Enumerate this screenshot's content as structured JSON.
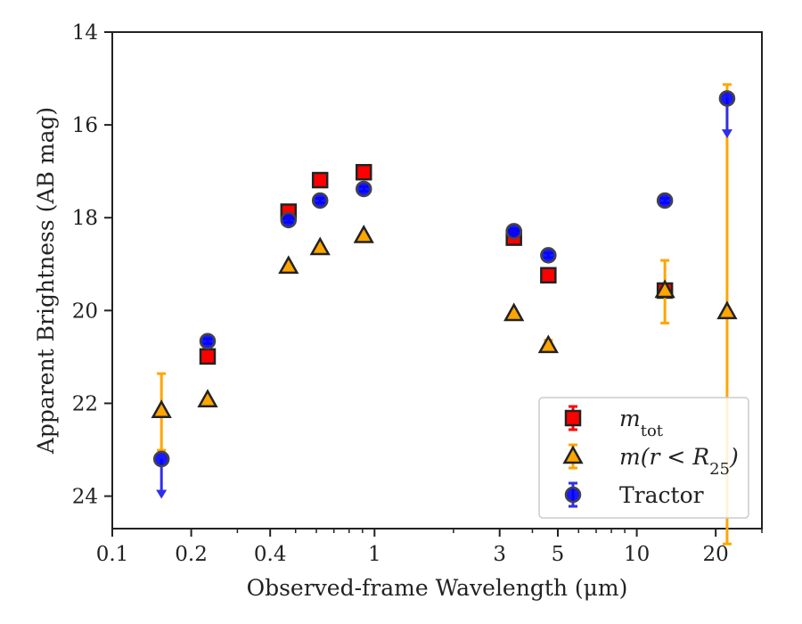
{
  "chart_data": {
    "type": "scatter",
    "title": "",
    "xlabel": "Observed-frame Wavelength (μm)",
    "ylabel": "Apparent Brightness (AB mag)",
    "xscale": "log",
    "xlim": [
      0.1,
      30
    ],
    "ylim": [
      24.7,
      14
    ],
    "y_inverted": true,
    "x_ticks": [
      {
        "value": 0.1,
        "label": "0.1"
      },
      {
        "value": 0.2,
        "label": "0.2"
      },
      {
        "value": 0.4,
        "label": "0.4"
      },
      {
        "value": 1,
        "label": "1"
      },
      {
        "value": 3,
        "label": "3"
      },
      {
        "value": 5,
        "label": "5"
      },
      {
        "value": 10,
        "label": "10"
      },
      {
        "value": 20,
        "label": "20"
      }
    ],
    "x_minor_ticks": [
      0.3,
      0.5,
      0.6,
      0.7,
      0.8,
      0.9,
      2,
      4,
      6,
      7,
      8,
      9,
      30
    ],
    "y_ticks": [
      {
        "value": 14,
        "label": "14"
      },
      {
        "value": 16,
        "label": "16"
      },
      {
        "value": 18,
        "label": "18"
      },
      {
        "value": 20,
        "label": "20"
      },
      {
        "value": 22,
        "label": "22"
      },
      {
        "value": 24,
        "label": "24"
      }
    ],
    "legend": {
      "placement": "lower-right",
      "entries": [
        {
          "series": 0,
          "main": "m",
          "sub": "tot",
          "rest": ""
        },
        {
          "series": 1,
          "main": "m(r < R",
          "sub": "25",
          "rest": ")"
        },
        {
          "series": 2,
          "main": "Tractor",
          "sub": "",
          "rest": ""
        }
      ]
    },
    "series": [
      {
        "marker": "square",
        "color": "#ff0000",
        "errcolor": "#ff0000",
        "points": [
          {
            "x": 0.231,
            "y": 20.99,
            "err": 0.08
          },
          {
            "x": 0.47,
            "y": 17.87,
            "err": 0.05
          },
          {
            "x": 0.62,
            "y": 17.19,
            "err": 0.05
          },
          {
            "x": 0.91,
            "y": 17.02,
            "err": 0.05
          },
          {
            "x": 3.4,
            "y": 18.43,
            "err": 0.05
          },
          {
            "x": 4.6,
            "y": 19.24,
            "err": 0.05
          },
          {
            "x": 12.8,
            "y": 19.57,
            "err": 0.08
          }
        ]
      },
      {
        "marker": "triangle",
        "color": "#ffa500",
        "errcolor": "#ffa500",
        "points": [
          {
            "x": 0.154,
            "y": 22.16,
            "errlo": 0.8,
            "errhi": 0.85
          },
          {
            "x": 0.231,
            "y": 21.93,
            "err": 0.05
          },
          {
            "x": 0.47,
            "y": 19.05,
            "err": 0.05
          },
          {
            "x": 0.62,
            "y": 18.65,
            "err": 0.05
          },
          {
            "x": 0.91,
            "y": 18.39,
            "err": 0.05
          },
          {
            "x": 3.4,
            "y": 20.07,
            "err": 0.05
          },
          {
            "x": 4.6,
            "y": 20.76,
            "err": 0.12
          },
          {
            "x": 12.8,
            "y": 19.57,
            "errlo": 0.65,
            "errhi": 0.7
          },
          {
            "x": 22.1,
            "y": 20.03,
            "errlo": 4.9,
            "errhi": 5.0
          }
        ]
      },
      {
        "marker": "circle",
        "color": "#0000ff",
        "errcolor": "#2f2fe8",
        "points": [
          {
            "x": 0.154,
            "y": 23.2,
            "upper_limit": true
          },
          {
            "x": 0.231,
            "y": 20.66,
            "err": 0.05
          },
          {
            "x": 0.47,
            "y": 18.05,
            "err": 0.05
          },
          {
            "x": 0.62,
            "y": 17.63,
            "err": 0.05
          },
          {
            "x": 0.91,
            "y": 17.38,
            "err": 0.05
          },
          {
            "x": 3.4,
            "y": 18.29,
            "err": 0.05
          },
          {
            "x": 4.6,
            "y": 18.81,
            "err": 0.05
          },
          {
            "x": 12.8,
            "y": 17.63,
            "err": 0.05
          },
          {
            "x": 22.1,
            "y": 15.43,
            "upper_limit": true
          }
        ]
      }
    ]
  }
}
